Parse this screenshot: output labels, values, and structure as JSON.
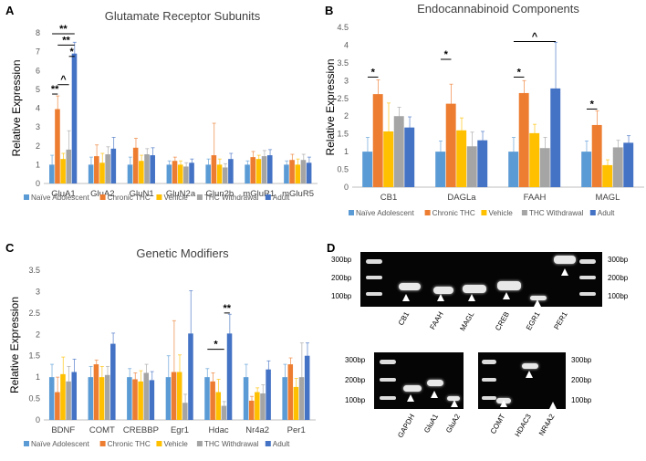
{
  "legend_labels": [
    "Naïve Adolescent",
    "Chronic THC",
    "Vehicle",
    "THC Withdrawal",
    "Adult"
  ],
  "colors": [
    "#5b9bd5",
    "#ed7d31",
    "#ffc000",
    "#a5a5a5",
    "#4472c4"
  ],
  "chart_data": [
    {
      "panel": "A",
      "type": "bar",
      "title": "Glutamate Receptor Subunits",
      "ylabel": "Relative Expression",
      "ylim": [
        0,
        8
      ],
      "yticks": [
        0,
        1,
        2,
        3,
        4,
        5,
        6,
        7,
        8
      ],
      "categories": [
        "GluA1",
        "GluA2",
        "GluN1",
        "GluN2a",
        "Glun2b",
        "mGluR1",
        "mGluR5"
      ],
      "series": [
        {
          "name": "Naïve Adolescent",
          "values": [
            1.0,
            1.0,
            1.0,
            1.0,
            1.0,
            1.0,
            1.0
          ],
          "errors": [
            0.5,
            0.4,
            0.4,
            0.2,
            0.3,
            0.2,
            0.2
          ]
        },
        {
          "name": "Chronic THC",
          "values": [
            3.95,
            1.45,
            1.9,
            1.2,
            1.5,
            1.4,
            1.25
          ],
          "errors": [
            0.7,
            0.6,
            0.5,
            0.2,
            1.7,
            0.3,
            0.3
          ]
        },
        {
          "name": "Vehicle",
          "values": [
            1.3,
            1.1,
            1.2,
            1.0,
            1.0,
            1.3,
            1.0
          ],
          "errors": [
            0.3,
            0.5,
            0.3,
            0.2,
            0.3,
            0.2,
            0.3
          ]
        },
        {
          "name": "THC Withdrawal",
          "values": [
            1.8,
            1.55,
            1.55,
            0.9,
            0.85,
            1.45,
            1.25
          ],
          "errors": [
            1.0,
            0.4,
            0.3,
            0.2,
            0.2,
            0.3,
            0.3
          ]
        },
        {
          "name": "Adult",
          "values": [
            6.9,
            1.85,
            1.5,
            1.1,
            1.3,
            1.5,
            1.1
          ],
          "errors": [
            0.6,
            0.6,
            0.4,
            0.2,
            0.3,
            0.3,
            0.3
          ]
        }
      ],
      "annotations": [
        {
          "text": "**",
          "category": 0,
          "from": 0,
          "to": 4,
          "y": 7.95
        },
        {
          "text": "**",
          "category": 0,
          "from": 1,
          "to": 4,
          "y": 7.35
        },
        {
          "text": "*",
          "category": 0,
          "from": 3,
          "to": 4,
          "y": 6.75
        },
        {
          "text": "^",
          "category": 0,
          "from": 1,
          "to": 3,
          "y": 5.25
        },
        {
          "text": "**",
          "category": 0,
          "from": 0,
          "to": 1,
          "y": 4.75
        }
      ]
    },
    {
      "panel": "B",
      "type": "bar",
      "title": "Endocannabinoid Components",
      "ylabel": "Relative Expression",
      "ylim": [
        0,
        4.5
      ],
      "yticks": [
        0,
        0.5,
        1,
        1.5,
        2,
        2.5,
        3,
        3.5,
        4,
        4.5
      ],
      "categories": [
        "CB1",
        "DAGLa",
        "FAAH",
        "MAGL"
      ],
      "series": [
        {
          "name": "Naïve Adolescent",
          "values": [
            1.0,
            1.0,
            1.0,
            1.0
          ],
          "errors": [
            0.4,
            0.3,
            0.4,
            0.3
          ]
        },
        {
          "name": "Chronic THC",
          "values": [
            2.62,
            2.35,
            2.65,
            1.75
          ],
          "errors": [
            0.4,
            0.55,
            0.35,
            0.4
          ]
        },
        {
          "name": "Vehicle",
          "values": [
            1.57,
            1.6,
            1.52,
            0.62
          ],
          "errors": [
            0.8,
            0.35,
            0.25,
            0.15
          ]
        },
        {
          "name": "THC Withdrawal",
          "values": [
            2.0,
            1.15,
            1.1,
            1.12
          ],
          "errors": [
            0.25,
            0.4,
            0.3,
            0.2
          ]
        },
        {
          "name": "Adult",
          "values": [
            1.68,
            1.32,
            2.78,
            1.25
          ],
          "errors": [
            0.3,
            0.25,
            1.3,
            0.2
          ]
        }
      ],
      "annotations": [
        {
          "text": "*",
          "category": 0,
          "from": 0,
          "to": 1,
          "y": 3.1
        },
        {
          "text": "*",
          "category": 1,
          "from": 0,
          "to": 1,
          "y": 3.6
        },
        {
          "text": "*",
          "category": 2,
          "from": 0,
          "to": 1,
          "y": 3.1
        },
        {
          "text": "^",
          "category": 2,
          "from": 0,
          "to": 4,
          "y": 4.1
        },
        {
          "text": "*",
          "category": 3,
          "from": 0,
          "to": 1,
          "y": 2.2
        }
      ]
    },
    {
      "panel": "C",
      "type": "bar",
      "title": "Genetic Modifiers",
      "ylabel": "Relative Expression",
      "ylim": [
        0,
        3.5
      ],
      "yticks": [
        0,
        0.5,
        1,
        1.5,
        2,
        2.5,
        3,
        3.5
      ],
      "categories": [
        "BDNF",
        "COMT",
        "CREBBP",
        "Egr1",
        "Hdac",
        "Nr4a2",
        "Per1"
      ],
      "series": [
        {
          "name": "Naïve Adolescent",
          "values": [
            1.0,
            1.0,
            1.0,
            1.0,
            1.0,
            1.0,
            1.0
          ],
          "errors": [
            0.3,
            0.25,
            0.2,
            0.5,
            0.2,
            0.3,
            0.3
          ]
        },
        {
          "name": "Chronic THC",
          "values": [
            0.65,
            1.3,
            0.95,
            1.12,
            0.9,
            0.45,
            1.3
          ],
          "errors": [
            0.35,
            0.1,
            0.15,
            1.2,
            0.2,
            0.1,
            0.15
          ]
        },
        {
          "name": "Vehicle",
          "values": [
            1.07,
            1.0,
            0.9,
            1.12,
            0.65,
            0.65,
            0.77
          ],
          "errors": [
            0.4,
            0.25,
            0.25,
            0.4,
            0.3,
            0.1,
            0.2
          ]
        },
        {
          "name": "THC Withdrawal",
          "values": [
            0.9,
            1.05,
            1.1,
            0.4,
            0.33,
            0.62,
            1.0
          ],
          "errors": [
            0.35,
            0.2,
            0.2,
            0.2,
            0.1,
            0.2,
            0.8
          ]
        },
        {
          "name": "Adult",
          "values": [
            1.12,
            1.78,
            0.93,
            2.02,
            2.02,
            1.18,
            1.5
          ],
          "errors": [
            0.3,
            0.25,
            0.2,
            1.0,
            0.45,
            0.2,
            0.3
          ]
        }
      ],
      "annotations": [
        {
          "text": "*",
          "category": 4,
          "from": 0,
          "to": 3,
          "y": 1.65
        },
        {
          "text": "**",
          "category": 4,
          "from": 3,
          "to": 4,
          "y": 2.5
        }
      ]
    }
  ],
  "panel_letters": {
    "a": "A",
    "b": "B",
    "c": "C",
    "d": "D"
  },
  "gels": {
    "top": {
      "lanes": [
        "CB1",
        "FAAH",
        "MAGL",
        "CREB",
        "EGR1",
        "PER1"
      ],
      "left_markers": [
        "300bp",
        "200bp",
        "100bp"
      ],
      "right_markers": [
        "300bp",
        "200bp",
        "100bp"
      ]
    },
    "bottom_left": {
      "lanes": [
        "GAPDH",
        "GluA1",
        "GluA2"
      ],
      "left_markers": [
        "300bp",
        "200bp",
        "100bp"
      ]
    },
    "bottom_right": {
      "lanes": [
        "COMT",
        "HDAC3",
        "NR4A2"
      ],
      "right_markers": [
        "300bp",
        "200bp",
        "100bp"
      ]
    }
  }
}
